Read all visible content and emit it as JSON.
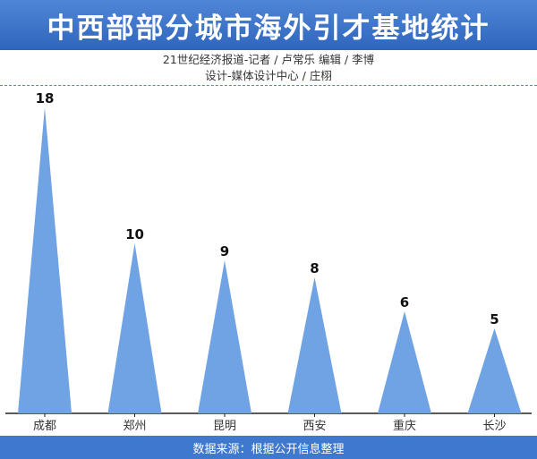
{
  "header": {
    "title": "中西部部分城市海外引才基地统计",
    "credit_line1": "21世纪经济报道-记者 / 卢常乐   编辑 / 李博",
    "credit_line2": "设计-媒体设计中心 / 庄栩"
  },
  "footer": {
    "source": "数据来源：根据公开信息整理"
  },
  "colors": {
    "banner": "#3a70c8",
    "triangle": "#6fa3e3",
    "footer": "#3f78cf",
    "axis": "#222222"
  },
  "chart_data": {
    "type": "bar",
    "title": "中西部部分城市海外引才基地统计",
    "xlabel": "",
    "ylabel": "",
    "categories": [
      "成都",
      "郑州",
      "昆明",
      "西安",
      "重庆",
      "长沙"
    ],
    "values": [
      18,
      10,
      9,
      8,
      6,
      5
    ],
    "ylim": [
      0,
      18
    ],
    "grid": false,
    "legend": "none"
  }
}
